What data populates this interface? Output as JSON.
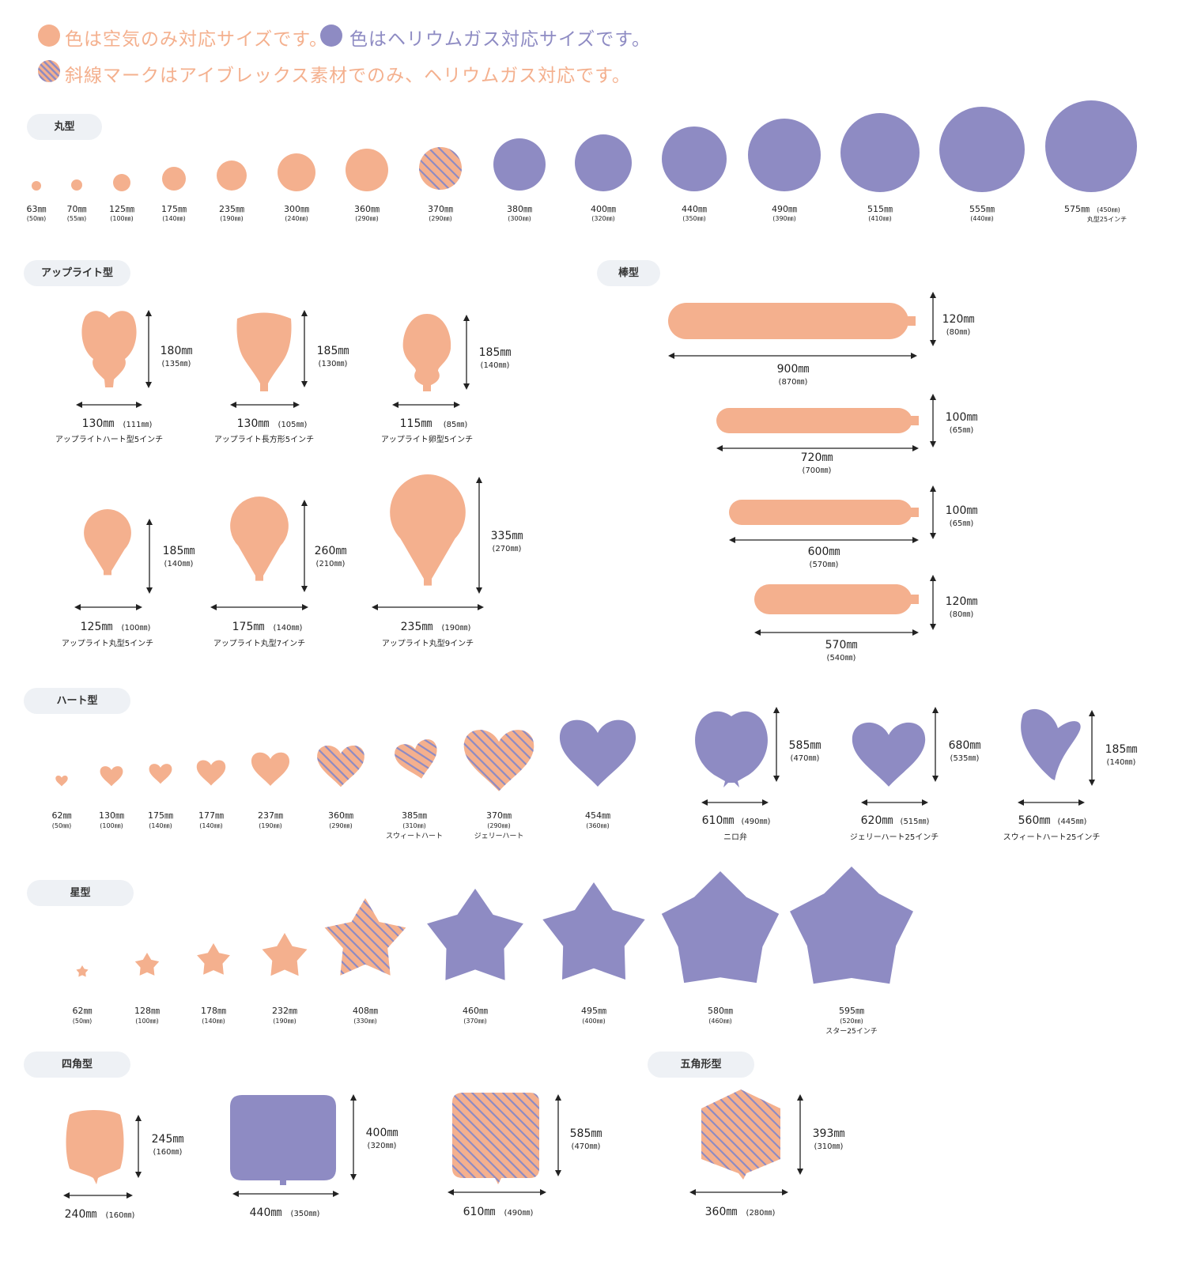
{
  "colors": {
    "air": "#f4b08e",
    "helium": "#8e8bc3",
    "stripe": "#8e8bc3",
    "pill_bg": "#eef1f5",
    "text": "#222222"
  },
  "legend": {
    "air_text": "色は空気のみ対応サイズです。",
    "helium_text": "色はヘリウムガス対応サイズです。",
    "stripe_text": "斜線マークはアイブレックス素材でのみ、ヘリウムガス対応です。"
  },
  "sections": {
    "round": "丸型",
    "upright": "アップライト型",
    "stick": "棒型",
    "heart": "ハート型",
    "star": "星型",
    "square": "四角型",
    "pentagon": "五角形型"
  },
  "round_items": [
    {
      "size": "63㎜",
      "sub": "(50㎜)",
      "fill": "air"
    },
    {
      "size": "70㎜",
      "sub": "(55㎜)",
      "fill": "air"
    },
    {
      "size": "125㎜",
      "sub": "(100㎜)",
      "fill": "air"
    },
    {
      "size": "175㎜",
      "sub": "(140㎜)",
      "fill": "air"
    },
    {
      "size": "235㎜",
      "sub": "(190㎜)",
      "fill": "air"
    },
    {
      "size": "300㎜",
      "sub": "(240㎜)",
      "fill": "air"
    },
    {
      "size": "360㎜",
      "sub": "(290㎜)",
      "fill": "air"
    },
    {
      "size": "370㎜",
      "sub": "(290㎜)",
      "fill": "stripe"
    },
    {
      "size": "380㎜",
      "sub": "(300㎜)",
      "fill": "helium"
    },
    {
      "size": "400㎜",
      "sub": "(320㎜)",
      "fill": "helium"
    },
    {
      "size": "440㎜",
      "sub": "(350㎜)",
      "fill": "helium"
    },
    {
      "size": "490㎜",
      "sub": "(390㎜)",
      "fill": "helium"
    },
    {
      "size": "515㎜",
      "sub": "(410㎜)",
      "fill": "helium"
    },
    {
      "size": "555㎜",
      "sub": "(440㎜)",
      "fill": "helium"
    },
    {
      "size": "575㎜",
      "sub": "(450㎜)",
      "note": "丸型25インチ",
      "fill": "helium"
    }
  ],
  "upright_items": [
    {
      "w": "130㎜",
      "wsub": "(111㎜)",
      "h": "180㎜",
      "hsub": "(135㎜)",
      "name": "アップライトハート型5インチ",
      "fill": "air"
    },
    {
      "w": "130㎜",
      "wsub": "(105㎜)",
      "h": "185㎜",
      "hsub": "(130㎜)",
      "name": "アップライト長方形5インチ",
      "fill": "air"
    },
    {
      "w": "115㎜",
      "wsub": "(85㎜)",
      "h": "185㎜",
      "hsub": "(140㎜)",
      "name": "アップライト卵型5インチ",
      "fill": "air"
    },
    {
      "w": "125㎜",
      "wsub": "(100㎜)",
      "h": "185㎜",
      "hsub": "(140㎜)",
      "name": "アップライト丸型5インチ",
      "fill": "air"
    },
    {
      "w": "175㎜",
      "wsub": "(140㎜)",
      "h": "260㎜",
      "hsub": "(210㎜)",
      "name": "アップライト丸型7インチ",
      "fill": "air"
    },
    {
      "w": "235㎜",
      "wsub": "(190㎜)",
      "h": "335㎜",
      "hsub": "(270㎜)",
      "name": "アップライト丸型9インチ",
      "fill": "air"
    }
  ],
  "stick_items": [
    {
      "len": "900㎜",
      "lensub": "(870㎜)",
      "dia": "120㎜",
      "diasub": "(80㎜)",
      "fill": "air"
    },
    {
      "len": "720㎜",
      "lensub": "(700㎜)",
      "dia": "100㎜",
      "diasub": "(65㎜)",
      "fill": "air"
    },
    {
      "len": "600㎜",
      "lensub": "(570㎜)",
      "dia": "100㎜",
      "diasub": "(65㎜)",
      "fill": "air"
    },
    {
      "len": "570㎜",
      "lensub": "(540㎜)",
      "dia": "120㎜",
      "diasub": "(80㎜)",
      "fill": "air"
    }
  ],
  "heart_items": [
    {
      "size": "62㎜",
      "sub": "(50㎜)",
      "fill": "air"
    },
    {
      "size": "130㎜",
      "sub": "(100㎜)",
      "fill": "air"
    },
    {
      "size": "175㎜",
      "sub": "(140㎜)",
      "fill": "air"
    },
    {
      "size": "177㎜",
      "sub": "(140㎜)",
      "fill": "air"
    },
    {
      "size": "237㎜",
      "sub": "(190㎜)",
      "fill": "air"
    },
    {
      "size": "360㎜",
      "sub": "(290㎜)",
      "fill": "stripe"
    },
    {
      "size": "385㎜",
      "sub": "(310㎜)",
      "note": "スウィートハート",
      "fill": "stripe"
    },
    {
      "size": "370㎜",
      "sub": "(290㎜)",
      "note": "ジェリーハート",
      "fill": "stripe"
    },
    {
      "size": "454㎜",
      "sub": "(360㎜)",
      "fill": "helium"
    }
  ],
  "heart_large_items": [
    {
      "w": "610㎜",
      "wsub": "(490㎜)",
      "h": "585㎜",
      "hsub": "(470㎜)",
      "name": "ニロ弁",
      "fill": "helium"
    },
    {
      "w": "620㎜",
      "wsub": "(515㎜)",
      "h": "680㎜",
      "hsub": "(535㎜)",
      "name": "ジェリーハート25インチ",
      "fill": "helium"
    },
    {
      "w": "560㎜",
      "wsub": "(445㎜)",
      "h": "185㎜",
      "hsub": "(140㎜)",
      "name": "スウィートハート25インチ",
      "fill": "helium"
    }
  ],
  "star_items": [
    {
      "size": "62㎜",
      "sub": "(50㎜)",
      "fill": "air"
    },
    {
      "size": "128㎜",
      "sub": "(100㎜)",
      "fill": "air"
    },
    {
      "size": "178㎜",
      "sub": "(140㎜)",
      "fill": "air"
    },
    {
      "size": "232㎜",
      "sub": "(190㎜)",
      "fill": "air"
    },
    {
      "size": "408㎜",
      "sub": "(330㎜)",
      "fill": "stripe"
    },
    {
      "size": "460㎜",
      "sub": "(370㎜)",
      "fill": "helium"
    },
    {
      "size": "495㎜",
      "sub": "(400㎜)",
      "fill": "helium"
    },
    {
      "size": "580㎜",
      "sub": "(460㎜)",
      "fill": "helium"
    },
    {
      "size": "595㎜",
      "sub": "(520㎜)",
      "note": "スター25インチ",
      "fill": "helium"
    }
  ],
  "square_items": [
    {
      "w": "240㎜",
      "wsub": "(160㎜)",
      "h": "245㎜",
      "hsub": "(160㎜)",
      "fill": "air"
    },
    {
      "w": "440㎜",
      "wsub": "(350㎜)",
      "h": "400㎜",
      "hsub": "(320㎜)",
      "fill": "helium"
    },
    {
      "w": "610㎜",
      "wsub": "(490㎜)",
      "h": "585㎜",
      "hsub": "(470㎜)",
      "fill": "stripe"
    }
  ],
  "pentagon_items": [
    {
      "w": "360㎜",
      "wsub": "(280㎜)",
      "h": "393㎜",
      "hsub": "(310㎜)",
      "fill": "stripe"
    }
  ]
}
